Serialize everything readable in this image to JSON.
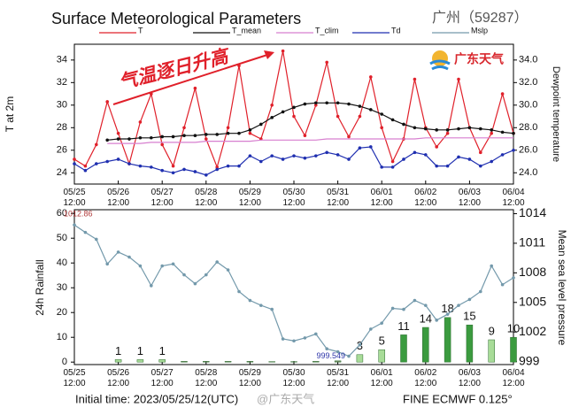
{
  "chart_data": [
    {
      "type": "line",
      "title": "Surface Meteorological Parameters",
      "subtitle": "广州（59287）",
      "logo": "广东天气",
      "annotation": "气温逐日升高",
      "y_label": "T at 2m",
      "y2_label": "Dewpoint temperature",
      "categories": [
        "05/25\n12:00",
        null,
        null,
        null,
        "05/26\n12:00",
        null,
        null,
        null,
        "05/27\n12:00",
        null,
        null,
        null,
        "05/28\n12:00",
        null,
        null,
        null,
        "05/29\n12:00",
        null,
        null,
        null,
        "05/30\n12:00",
        null,
        null,
        null,
        "05/31\n12:00",
        null,
        null,
        null,
        "06/01\n12:00",
        null,
        null,
        null,
        "06/02\n12:00",
        null,
        null,
        null,
        "06/03\n12:00",
        null,
        null,
        null,
        "06/04\n12:00"
      ],
      "ylim": [
        23,
        35.4
      ],
      "yticks": [
        24,
        26,
        28,
        30,
        32,
        34
      ],
      "y2lim": [
        23,
        35.4
      ],
      "y2ticks": [
        {
          "value": 24,
          "label": "24.0"
        },
        {
          "value": 26,
          "label": "26.0"
        },
        {
          "value": 28,
          "label": "28.0"
        },
        {
          "value": 30,
          "label": "30.0"
        },
        {
          "value": 32,
          "label": "32.0"
        },
        {
          "value": 34,
          "label": "34.0"
        }
      ],
      "series": [
        {
          "name": "T",
          "color": "#e0202a",
          "values": [
            25.2,
            24.6,
            26.5,
            30.3,
            27.5,
            24.8,
            28.5,
            31,
            26.5,
            24.6,
            28,
            31.5,
            27,
            24.5,
            28,
            33.5,
            27.5,
            27,
            30,
            34.8,
            29,
            27.3,
            30,
            33.8,
            29,
            27.2,
            29,
            32.5,
            28,
            25,
            27,
            32.3,
            28,
            26.3,
            27.5,
            32.3,
            28,
            25.8,
            27.5,
            31,
            27.5
          ]
        },
        {
          "name": "T_mean",
          "color": "#111111",
          "values": [
            null,
            null,
            null,
            26.9,
            27,
            27,
            27.1,
            27.1,
            27.2,
            27.2,
            27.3,
            27.3,
            27.4,
            27.4,
            27.5,
            27.5,
            27.8,
            28.3,
            28.9,
            29.4,
            29.8,
            30.1,
            30.2,
            30.2,
            30.2,
            30.1,
            29.9,
            29.6,
            29.2,
            28.7,
            28.3,
            28.0,
            27.9,
            27.8,
            27.8,
            27.9,
            28,
            27.9,
            27.8,
            27.6,
            27.5
          ]
        },
        {
          "name": "T_clim",
          "color": "#d77fcf",
          "values": [
            null,
            null,
            null,
            26.6,
            26.6,
            26.6,
            26.6,
            26.7,
            26.7,
            26.7,
            26.7,
            26.7,
            26.8,
            26.8,
            26.8,
            26.8,
            26.8,
            26.9,
            26.9,
            26.9,
            26.9,
            26.9,
            26.9,
            27,
            27,
            27,
            27,
            27,
            27,
            27,
            27,
            27,
            27.1,
            27.1,
            27.1,
            27.1,
            27.1,
            27.1,
            27.1,
            27.1,
            27.1
          ]
        },
        {
          "name": "Td",
          "color": "#1f2fb0",
          "axis": "y2",
          "values": [
            24.8,
            24.2,
            24.8,
            25,
            25.2,
            24.8,
            24.6,
            24.5,
            24.2,
            24,
            24.3,
            24.1,
            23.8,
            24.3,
            24.6,
            24.6,
            25.5,
            25,
            25.5,
            25.2,
            25.5,
            25.3,
            25.5,
            25.8,
            25.6,
            25.2,
            26.2,
            26.3,
            24.5,
            24.5,
            25.2,
            25.8,
            25.6,
            24.6,
            24.6,
            25.4,
            25.2,
            24.6,
            25,
            25.6,
            26
          ]
        }
      ]
    },
    {
      "type": "combo",
      "y_label": "24h Rainfall",
      "y2_label": "Mean sea level pressure",
      "footer_left": "Initial time: 2023/05/25/12(UTC)",
      "footer_right": "FINE ECMWF 0.125°",
      "watermark": "@广东天气",
      "categories": [
        "05/25\n12:00",
        null,
        null,
        null,
        "05/26\n12:00",
        null,
        null,
        null,
        "05/27\n12:00",
        null,
        null,
        null,
        "05/28\n12:00",
        null,
        null,
        null,
        "05/29\n12:00",
        null,
        null,
        null,
        "05/30\n12:00",
        null,
        null,
        null,
        "05/31\n12:00",
        null,
        null,
        null,
        "06/01\n12:00",
        null,
        null,
        null,
        "06/02\n12:00",
        null,
        null,
        null,
        "06/03\n12:00",
        null,
        null,
        null,
        "06/04\n12:00"
      ],
      "ylim": [
        -1,
        61.5
      ],
      "yticks": [
        0,
        10,
        20,
        30,
        40,
        50,
        60
      ],
      "y2lim": [
        998.7,
        1014.4
      ],
      "y2ticks": [
        999,
        1002,
        1005,
        1008,
        1011,
        1014
      ],
      "series": [
        {
          "type": "bar",
          "values": [
            null,
            null,
            null,
            null,
            1,
            null,
            1,
            null,
            1,
            null,
            0.3,
            null,
            0.3,
            null,
            0.3,
            null,
            0.3,
            null,
            0.2,
            null,
            0.2,
            null,
            0.3,
            null,
            0.5,
            null,
            3,
            null,
            5,
            null,
            11,
            null,
            14,
            null,
            18,
            null,
            15,
            null,
            9,
            null,
            10
          ],
          "value_labels": [
            null,
            null,
            null,
            null,
            "1",
            null,
            "1",
            null,
            "1",
            null,
            null,
            null,
            null,
            null,
            null,
            null,
            null,
            null,
            null,
            null,
            null,
            null,
            null,
            null,
            null,
            null,
            "3",
            null,
            "5",
            null,
            "11",
            null,
            "14",
            null,
            "18",
            null,
            "15",
            null,
            "9",
            null,
            "10"
          ],
          "colors": [
            null,
            null,
            null,
            null,
            "#a8dc98",
            null,
            "#a8dc98",
            null,
            "#a8dc98",
            null,
            "#6c8a60",
            null,
            "#6c8a60",
            null,
            "#6c8a60",
            null,
            "#6c8a60",
            null,
            "#6c8a60",
            null,
            "#6c8a60",
            null,
            "#6c8a60",
            null,
            "#6c8a60",
            null,
            "#a8dc98",
            null,
            "#a8dc98",
            null,
            "#3b9b3f",
            null,
            "#3b9b3f",
            null,
            "#3b9b3f",
            null,
            "#3b9b3f",
            null,
            "#a8dc98",
            null,
            "#3b9b3f"
          ]
        },
        {
          "type": "line",
          "name": "Mslp",
          "color": "#7399ab",
          "axis": "y2",
          "values": [
            1012.86,
            1012.1,
            1011.4,
            1008.9,
            1010.1,
            1009.6,
            1008.7,
            1006.7,
            1008.7,
            1008.9,
            1007.8,
            1006.9,
            1007.8,
            1009.1,
            1008.3,
            1006.1,
            1005.2,
            1004.7,
            1004.3,
            1001.3,
            1001.1,
            1001.4,
            1001.8,
            1000.3,
            1000.0,
            999.549,
            1000.7,
            1002.3,
            1002.9,
            1004.4,
            1004.3,
            1005.2,
            1004.7,
            1003.2,
            1003.8,
            1004.7,
            1005.3,
            1006.1,
            1008.7,
            1006.8,
            1007.5
          ],
          "value_labels": [
            "1012.86",
            null,
            null,
            null,
            null,
            null,
            null,
            null,
            null,
            null,
            null,
            null,
            null,
            null,
            null,
            null,
            null,
            null,
            null,
            null,
            null,
            null,
            null,
            null,
            null,
            "999.549",
            null,
            null,
            null,
            null,
            null,
            null,
            null,
            null,
            null,
            null,
            null,
            null,
            null,
            null,
            null
          ]
        }
      ]
    }
  ]
}
